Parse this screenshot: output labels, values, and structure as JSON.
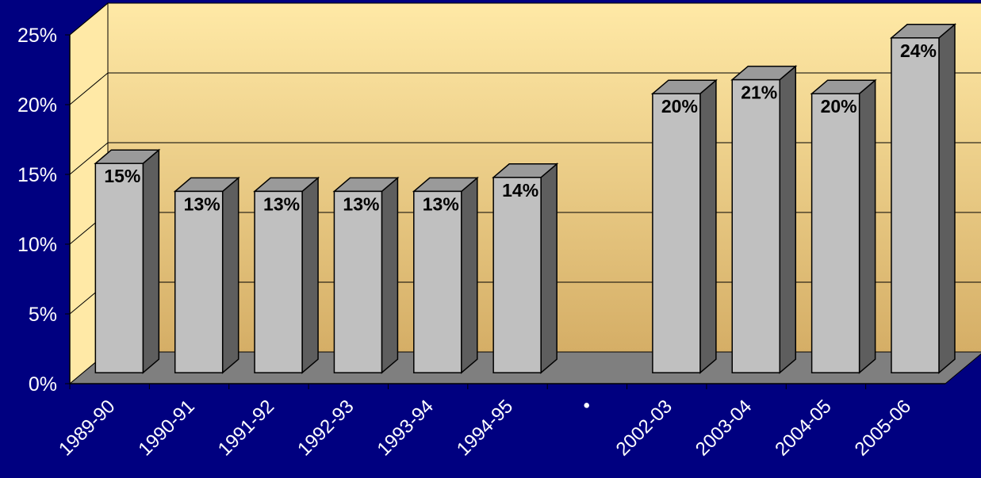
{
  "chart_data": {
    "type": "bar",
    "categories": [
      "1989-90",
      "1990-91",
      "1991-92",
      "1992-93",
      "1993-94",
      "1994-95",
      "•",
      "2002-03",
      "2003-04",
      "2004-05",
      "2005-06"
    ],
    "values": [
      15,
      13,
      13,
      13,
      13,
      14,
      null,
      20,
      21,
      20,
      24
    ],
    "data_labels": [
      "15%",
      "13%",
      "13%",
      "13%",
      "13%",
      "14%",
      "",
      "20%",
      "21%",
      "20%",
      "24%"
    ],
    "ytick_labels": [
      "0%",
      "5%",
      "10%",
      "15%",
      "20%",
      "25%"
    ],
    "ylim": [
      0,
      25
    ],
    "title": "",
    "xlabel": "",
    "ylabel": "",
    "grid": true,
    "style": "3d-column",
    "colors": {
      "background": "#000080",
      "wall_top": "#FFE9A6",
      "wall_bottom": "#D5AE66",
      "floor": "#7F7F7F",
      "bar_front": "#C0C0C0",
      "bar_side": "#5E5E5E",
      "bar_top": "#9A9A9A",
      "text": "#FFFFFF",
      "label": "#000000"
    }
  }
}
